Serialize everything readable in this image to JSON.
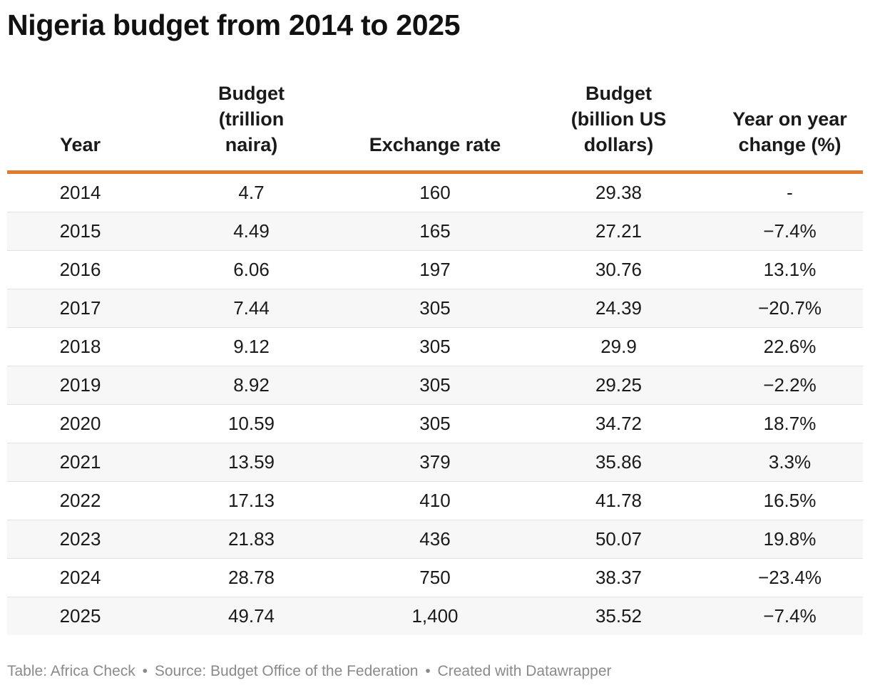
{
  "title": "Nigeria budget from 2014 to 2025",
  "chart_data": {
    "type": "table",
    "title": "Nigeria budget from 2014 to 2025",
    "columns": [
      "Year",
      "Budget (trillion naira)",
      "Exchange rate",
      "Budget (billion US dollars)",
      "Year on year change (%)"
    ],
    "column_header_lines": [
      [
        "Year"
      ],
      [
        "Budget",
        "(trillion",
        "naira)"
      ],
      [
        "Exchange rate"
      ],
      [
        "Budget",
        "(billion US",
        "dollars)"
      ],
      [
        "Year on year",
        "change (%)"
      ]
    ],
    "rows": [
      [
        "2014",
        "4.7",
        "160",
        "29.38",
        "-"
      ],
      [
        "2015",
        "4.49",
        "165",
        "27.21",
        "−7.4%"
      ],
      [
        "2016",
        "6.06",
        "197",
        "30.76",
        "13.1%"
      ],
      [
        "2017",
        "7.44",
        "305",
        "24.39",
        "−20.7%"
      ],
      [
        "2018",
        "9.12",
        "305",
        "29.9",
        "22.6%"
      ],
      [
        "2019",
        "8.92",
        "305",
        "29.25",
        "−2.2%"
      ],
      [
        "2020",
        "10.59",
        "305",
        "34.72",
        "18.7%"
      ],
      [
        "2021",
        "13.59",
        "379",
        "35.86",
        "3.3%"
      ],
      [
        "2022",
        "17.13",
        "410",
        "41.78",
        "16.5%"
      ],
      [
        "2023",
        "21.83",
        "436",
        "50.07",
        "19.8%"
      ],
      [
        "2024",
        "28.78",
        "750",
        "38.37",
        "−23.4%"
      ],
      [
        "2025",
        "49.74",
        "1,400",
        "35.52",
        "−7.4%"
      ]
    ]
  },
  "footer": {
    "table_credit": "Table: Africa Check",
    "source": "Source: Budget Office of the Federation",
    "created_with": "Created with Datawrapper",
    "separator": "•"
  },
  "colors": {
    "header_rule": "#e07b2e",
    "stripe": "#f7f7f7",
    "footer_text": "#8a8a8a"
  }
}
